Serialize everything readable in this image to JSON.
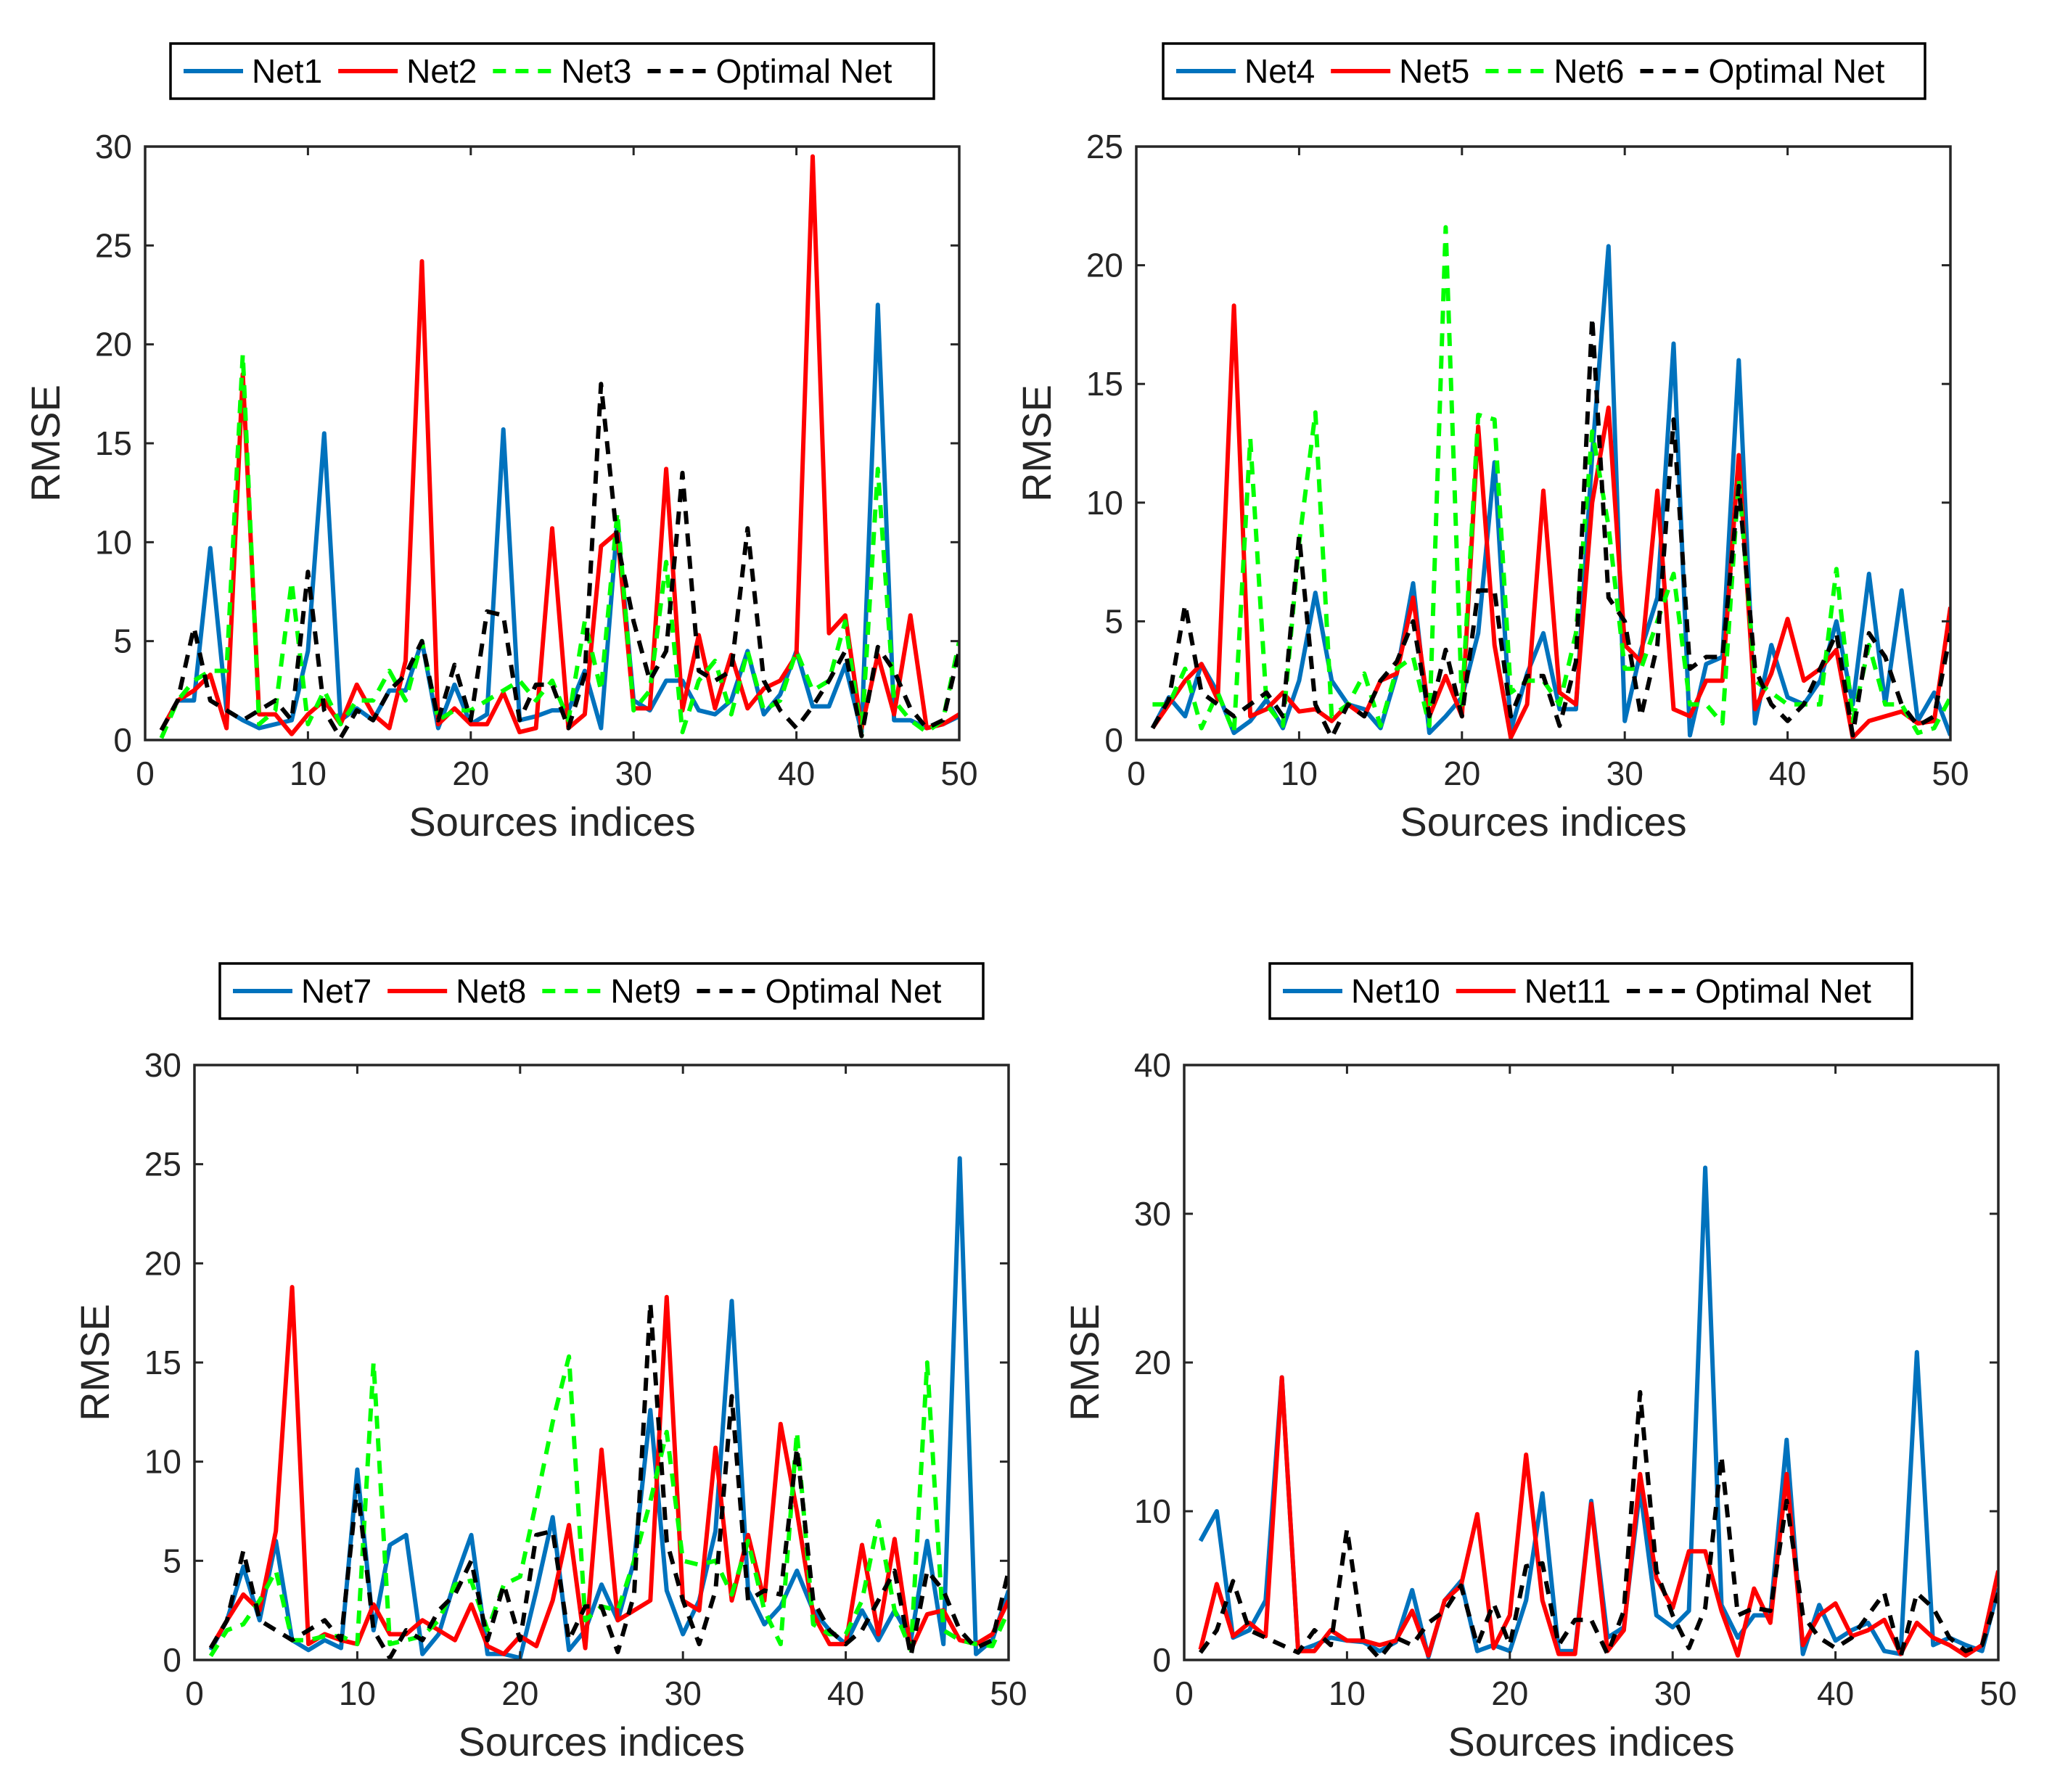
{
  "chart_data": [
    {
      "type": "line",
      "xlabel": "Sources indices",
      "ylabel": "RMSE",
      "xlim": [
        0,
        50
      ],
      "ylim": [
        0,
        30
      ],
      "xticks": [
        0,
        10,
        20,
        30,
        40,
        50
      ],
      "yticks": [
        0,
        5,
        10,
        15,
        20,
        25,
        30
      ],
      "x": [
        1,
        2,
        3,
        4,
        5,
        6,
        7,
        8,
        9,
        10,
        11,
        12,
        13,
        14,
        15,
        16,
        17,
        18,
        19,
        20,
        21,
        22,
        23,
        24,
        25,
        26,
        27,
        28,
        29,
        30,
        31,
        32,
        33,
        34,
        35,
        36,
        37,
        38,
        39,
        40,
        41,
        42,
        43,
        44,
        45,
        46,
        47,
        48,
        49,
        50
      ],
      "series": [
        {
          "name": "Net1",
          "color": "#0072BD",
          "dash": "solid",
          "values": [
            0.5,
            2.0,
            2.0,
            9.7,
            1.5,
            1.0,
            0.6,
            0.8,
            1.0,
            4.5,
            15.5,
            1.0,
            1.6,
            1.0,
            2.5,
            2.5,
            5.0,
            0.6,
            2.8,
            0.8,
            1.3,
            15.7,
            1.0,
            1.2,
            1.5,
            1.5,
            3.5,
            0.6,
            11.0,
            2.0,
            1.5,
            3.0,
            3.0,
            1.5,
            1.3,
            2.0,
            4.5,
            1.3,
            2.3,
            4.5,
            1.7,
            1.7,
            3.8,
            0.4,
            22.0,
            1.0,
            1.0,
            0.6,
            0.8,
            1.2
          ]
        },
        {
          "name": "Net2",
          "color": "#FF0000",
          "dash": "solid",
          "values": [
            0.5,
            2.0,
            2.5,
            3.3,
            0.6,
            18.5,
            1.3,
            1.3,
            0.3,
            1.3,
            2.0,
            0.8,
            2.8,
            1.3,
            0.6,
            4.0,
            24.2,
            0.8,
            1.6,
            0.8,
            0.8,
            2.4,
            0.4,
            0.6,
            10.7,
            0.6,
            1.3,
            9.8,
            10.5,
            1.6,
            1.6,
            13.7,
            1.5,
            5.3,
            1.6,
            4.3,
            1.6,
            2.6,
            3.0,
            4.3,
            29.5,
            5.4,
            6.3,
            0.6,
            4.3,
            1.3,
            6.3,
            0.6,
            0.8,
            1.3
          ]
        },
        {
          "name": "Net3",
          "color": "#00FF00",
          "dash": "dashed",
          "values": [
            0.1,
            2.0,
            3.0,
            3.5,
            3.5,
            19.5,
            0.8,
            1.5,
            8.0,
            0.8,
            2.5,
            0.8,
            2.0,
            2.0,
            3.5,
            2.0,
            5.0,
            1.0,
            1.5,
            1.5,
            2.0,
            2.5,
            3.0,
            2.0,
            3.0,
            1.0,
            6.0,
            2.5,
            11.5,
            1.5,
            2.5,
            9.0,
            0.4,
            3.0,
            4.0,
            1.3,
            4.5,
            1.5,
            2.0,
            4.5,
            2.5,
            3.0,
            6.0,
            0.2,
            13.7,
            2.0,
            1.0,
            0.4,
            1.0,
            5.0
          ]
        },
        {
          "name": "Optimal Net",
          "color": "#000000",
          "dash": "dashed",
          "values": [
            0.5,
            2.0,
            5.7,
            2.0,
            1.5,
            1.0,
            1.5,
            2.0,
            1.0,
            8.5,
            1.5,
            0.1,
            1.5,
            1.0,
            2.5,
            3.3,
            5.0,
            1.0,
            3.8,
            1.0,
            6.5,
            6.3,
            1.0,
            2.8,
            2.8,
            0.6,
            3.3,
            18.0,
            10.0,
            6.0,
            3.0,
            4.5,
            13.5,
            3.5,
            3.0,
            3.5,
            10.7,
            3.0,
            1.5,
            0.6,
            1.7,
            3.0,
            4.5,
            0.2,
            4.7,
            3.5,
            1.6,
            0.6,
            1.0,
            4.5
          ]
        }
      ]
    },
    {
      "type": "line",
      "xlabel": "Sources indices",
      "ylabel": "RMSE",
      "xlim": [
        0,
        50
      ],
      "ylim": [
        0,
        25
      ],
      "xticks": [
        0,
        10,
        20,
        30,
        40,
        50
      ],
      "yticks": [
        0,
        5,
        10,
        15,
        20,
        25
      ],
      "x": [
        1,
        2,
        3,
        4,
        5,
        6,
        7,
        8,
        9,
        10,
        11,
        12,
        13,
        14,
        15,
        16,
        17,
        18,
        19,
        20,
        21,
        22,
        23,
        24,
        25,
        26,
        27,
        28,
        29,
        30,
        31,
        32,
        33,
        34,
        35,
        36,
        37,
        38,
        39,
        40,
        41,
        42,
        43,
        44,
        45,
        46,
        47,
        48,
        49,
        50
      ],
      "series": [
        {
          "name": "Net4",
          "color": "#0072BD",
          "dash": "solid",
          "values": [
            0.5,
            1.8,
            1.0,
            3.2,
            2.0,
            0.3,
            0.8,
            1.7,
            0.5,
            2.5,
            6.2,
            2.5,
            1.5,
            1.3,
            0.5,
            2.8,
            6.6,
            0.3,
            1.0,
            1.8,
            4.5,
            11.7,
            0.4,
            2.8,
            4.5,
            1.3,
            1.3,
            12.0,
            20.8,
            0.8,
            3.8,
            6.0,
            16.7,
            0.2,
            3.2,
            3.5,
            16.0,
            0.7,
            4.0,
            1.8,
            1.5,
            2.5,
            5.0,
            1.5,
            7.0,
            1.5,
            6.3,
            0.8,
            2.0,
            0.2
          ]
        },
        {
          "name": "Net5",
          "color": "#FF0000",
          "dash": "solid",
          "values": [
            0.5,
            1.5,
            2.5,
            3.2,
            1.7,
            18.3,
            1.0,
            1.3,
            2.0,
            1.2,
            1.3,
            0.8,
            1.5,
            1.0,
            2.5,
            2.8,
            6.0,
            1.0,
            2.7,
            1.0,
            13.2,
            4.0,
            0.1,
            1.5,
            10.5,
            2.0,
            1.5,
            10.0,
            14.0,
            4.0,
            3.3,
            10.5,
            1.3,
            1.0,
            2.5,
            2.5,
            12.0,
            1.3,
            2.8,
            5.1,
            2.5,
            3.0,
            3.8,
            0.1,
            0.8,
            1.0,
            1.2,
            0.7,
            0.8,
            5.6
          ]
        },
        {
          "name": "Net6",
          "color": "#00FF00",
          "dash": "dashed",
          "values": [
            1.5,
            1.5,
            3.0,
            0.5,
            2.0,
            0.3,
            12.7,
            1.5,
            0.6,
            8.3,
            13.8,
            1.0,
            1.5,
            2.8,
            0.6,
            3.0,
            3.5,
            0.6,
            21.6,
            1.5,
            13.7,
            13.5,
            2.0,
            2.5,
            2.5,
            1.5,
            4.5,
            13.0,
            9.0,
            3.0,
            3.0,
            5.0,
            7.0,
            1.5,
            1.5,
            0.7,
            11.0,
            2.5,
            2.0,
            1.5,
            1.5,
            1.5,
            7.2,
            0.8,
            4.0,
            1.5,
            1.5,
            0.3,
            0.5,
            1.8
          ]
        },
        {
          "name": "Optimal Net",
          "color": "#000000",
          "dash": "dashed",
          "values": [
            0.5,
            1.7,
            5.7,
            2.0,
            1.5,
            1.0,
            1.5,
            2.0,
            1.0,
            8.6,
            1.5,
            0.1,
            1.5,
            1.0,
            2.5,
            3.3,
            5.0,
            1.0,
            3.8,
            1.0,
            6.3,
            6.3,
            1.0,
            2.7,
            2.7,
            0.6,
            3.3,
            17.8,
            6.0,
            5.0,
            1.0,
            4.0,
            13.5,
            3.0,
            3.5,
            3.5,
            10.7,
            3.0,
            1.5,
            0.8,
            1.5,
            3.0,
            4.5,
            0.2,
            4.5,
            3.5,
            1.5,
            0.6,
            1.0,
            4.5
          ]
        }
      ]
    },
    {
      "type": "line",
      "xlabel": "Sources indices",
      "ylabel": "RMSE",
      "xlim": [
        0,
        50
      ],
      "ylim": [
        0,
        30
      ],
      "xticks": [
        0,
        10,
        20,
        30,
        40,
        50
      ],
      "yticks": [
        0,
        5,
        10,
        15,
        20,
        25,
        30
      ],
      "x": [
        1,
        2,
        3,
        4,
        5,
        6,
        7,
        8,
        9,
        10,
        11,
        12,
        13,
        14,
        15,
        16,
        17,
        18,
        19,
        20,
        21,
        22,
        23,
        24,
        25,
        26,
        27,
        28,
        29,
        30,
        31,
        32,
        33,
        34,
        35,
        36,
        37,
        38,
        39,
        40,
        41,
        42,
        43,
        44,
        45,
        46,
        47,
        48,
        49,
        50
      ],
      "series": [
        {
          "name": "Net7",
          "color": "#0072BD",
          "dash": "solid",
          "values": [
            0.5,
            2.0,
            4.7,
            2.0,
            6.0,
            1.0,
            0.5,
            1.0,
            0.6,
            9.6,
            1.5,
            5.8,
            6.3,
            0.3,
            1.3,
            4.0,
            6.3,
            0.3,
            0.3,
            0.1,
            3.5,
            7.2,
            0.5,
            1.5,
            3.8,
            2.0,
            5.0,
            12.6,
            3.5,
            1.3,
            3.0,
            6.5,
            18.1,
            3.5,
            1.8,
            2.7,
            4.5,
            2.5,
            1.5,
            0.8,
            2.5,
            1.0,
            2.5,
            1.0,
            6.0,
            0.8,
            25.3,
            0.3,
            1.0,
            3.5
          ]
        },
        {
          "name": "Net8",
          "color": "#FF0000",
          "dash": "solid",
          "values": [
            0.6,
            2.0,
            3.3,
            2.5,
            6.5,
            18.8,
            0.8,
            1.3,
            1.0,
            0.8,
            2.8,
            1.3,
            1.3,
            2.0,
            1.5,
            1.0,
            2.8,
            0.7,
            0.3,
            1.2,
            0.7,
            3.0,
            6.8,
            0.6,
            10.6,
            2.0,
            2.5,
            3.0,
            18.3,
            3.0,
            2.5,
            10.7,
            3.0,
            6.3,
            3.0,
            11.9,
            7.5,
            2.3,
            0.8,
            0.8,
            5.8,
            1.3,
            6.1,
            0.5,
            2.3,
            2.5,
            1.0,
            0.8,
            1.3,
            3.0
          ]
        },
        {
          "name": "Net9",
          "color": "#00FF00",
          "dash": "dashed",
          "values": [
            0.2,
            1.5,
            1.8,
            3.0,
            4.5,
            1.0,
            1.0,
            1.2,
            1.2,
            0.8,
            15.0,
            0.8,
            1.0,
            1.2,
            2.0,
            3.8,
            4.0,
            1.5,
            3.8,
            4.2,
            8.0,
            12.0,
            15.3,
            2.0,
            2.7,
            2.5,
            5.0,
            8.0,
            11.5,
            5.0,
            4.8,
            5.0,
            3.3,
            6.0,
            2.5,
            0.8,
            11.5,
            1.8,
            1.3,
            1.3,
            3.0,
            7.0,
            2.5,
            0.5,
            15.0,
            1.5,
            1.0,
            0.8,
            0.7,
            2.5
          ]
        },
        {
          "name": "Optimal Net",
          "color": "#000000",
          "dash": "dashed",
          "values": [
            0.6,
            2.0,
            5.5,
            2.0,
            1.5,
            1.0,
            1.5,
            2.0,
            1.0,
            8.8,
            1.5,
            0.1,
            1.5,
            1.0,
            2.5,
            3.3,
            5.0,
            1.0,
            3.8,
            1.0,
            6.3,
            6.5,
            1.0,
            2.7,
            2.7,
            0.4,
            3.3,
            18.0,
            6.0,
            3.0,
            0.8,
            3.5,
            13.3,
            3.0,
            3.5,
            3.3,
            10.7,
            3.0,
            1.5,
            0.8,
            1.5,
            3.0,
            4.5,
            0.2,
            4.5,
            3.5,
            1.5,
            0.6,
            1.0,
            4.5
          ]
        }
      ]
    },
    {
      "type": "line",
      "xlabel": "Sources indices",
      "ylabel": "RMSE",
      "xlim": [
        0,
        50
      ],
      "ylim": [
        0,
        40
      ],
      "xticks": [
        0,
        10,
        20,
        30,
        40,
        50
      ],
      "yticks": [
        0,
        10,
        20,
        30,
        40
      ],
      "x": [
        1,
        2,
        3,
        4,
        5,
        6,
        7,
        8,
        9,
        10,
        11,
        12,
        13,
        14,
        15,
        16,
        17,
        18,
        19,
        20,
        21,
        22,
        23,
        24,
        25,
        26,
        27,
        28,
        29,
        30,
        31,
        32,
        33,
        34,
        35,
        36,
        37,
        38,
        39,
        40,
        41,
        42,
        43,
        44,
        45,
        46,
        47,
        48,
        49,
        50
      ],
      "series": [
        {
          "name": "Net10",
          "color": "#0072BD",
          "dash": "solid",
          "values": [
            8.0,
            10.0,
            1.5,
            2.0,
            4.0,
            19.0,
            0.6,
            1.0,
            1.5,
            1.3,
            1.2,
            0.6,
            1.2,
            4.7,
            0.2,
            4.0,
            5.3,
            0.6,
            1.0,
            0.6,
            4.0,
            11.2,
            0.6,
            0.6,
            10.7,
            1.5,
            2.2,
            11.5,
            3.0,
            2.2,
            3.3,
            33.1,
            3.7,
            1.5,
            3.0,
            3.0,
            14.8,
            0.4,
            3.7,
            1.3,
            2.0,
            2.5,
            0.6,
            0.4,
            20.7,
            1.0,
            1.5,
            1.0,
            0.6,
            4.8
          ]
        },
        {
          "name": "Net11",
          "color": "#FF0000",
          "dash": "solid",
          "values": [
            0.7,
            5.1,
            1.6,
            2.5,
            1.6,
            19.0,
            0.6,
            0.6,
            2.0,
            1.3,
            1.3,
            1.0,
            1.3,
            3.3,
            0.3,
            4.0,
            5.0,
            9.8,
            0.8,
            3.0,
            13.8,
            4.0,
            0.4,
            0.4,
            10.5,
            0.6,
            2.0,
            12.5,
            5.5,
            3.5,
            7.3,
            7.3,
            3.3,
            0.3,
            4.8,
            2.5,
            12.5,
            1.0,
            3.0,
            3.8,
            1.6,
            2.0,
            2.7,
            0.4,
            2.5,
            1.5,
            1.0,
            0.3,
            1.0,
            6.0
          ]
        },
        {
          "name": "Optimal Net",
          "color": "#000000",
          "dash": "dashed",
          "values": [
            0.5,
            2.0,
            5.3,
            2.0,
            1.5,
            1.0,
            0.5,
            2.0,
            1.0,
            8.8,
            1.3,
            0.1,
            1.5,
            1.0,
            2.5,
            3.3,
            5.0,
            1.0,
            3.8,
            1.0,
            6.3,
            6.5,
            1.0,
            2.7,
            2.7,
            0.4,
            3.3,
            18.0,
            6.0,
            3.0,
            0.8,
            3.5,
            13.7,
            3.0,
            3.5,
            3.3,
            10.7,
            3.0,
            1.5,
            0.8,
            1.5,
            3.0,
            4.5,
            0.2,
            4.5,
            3.5,
            1.5,
            0.6,
            1.0,
            4.5
          ]
        }
      ]
    }
  ]
}
